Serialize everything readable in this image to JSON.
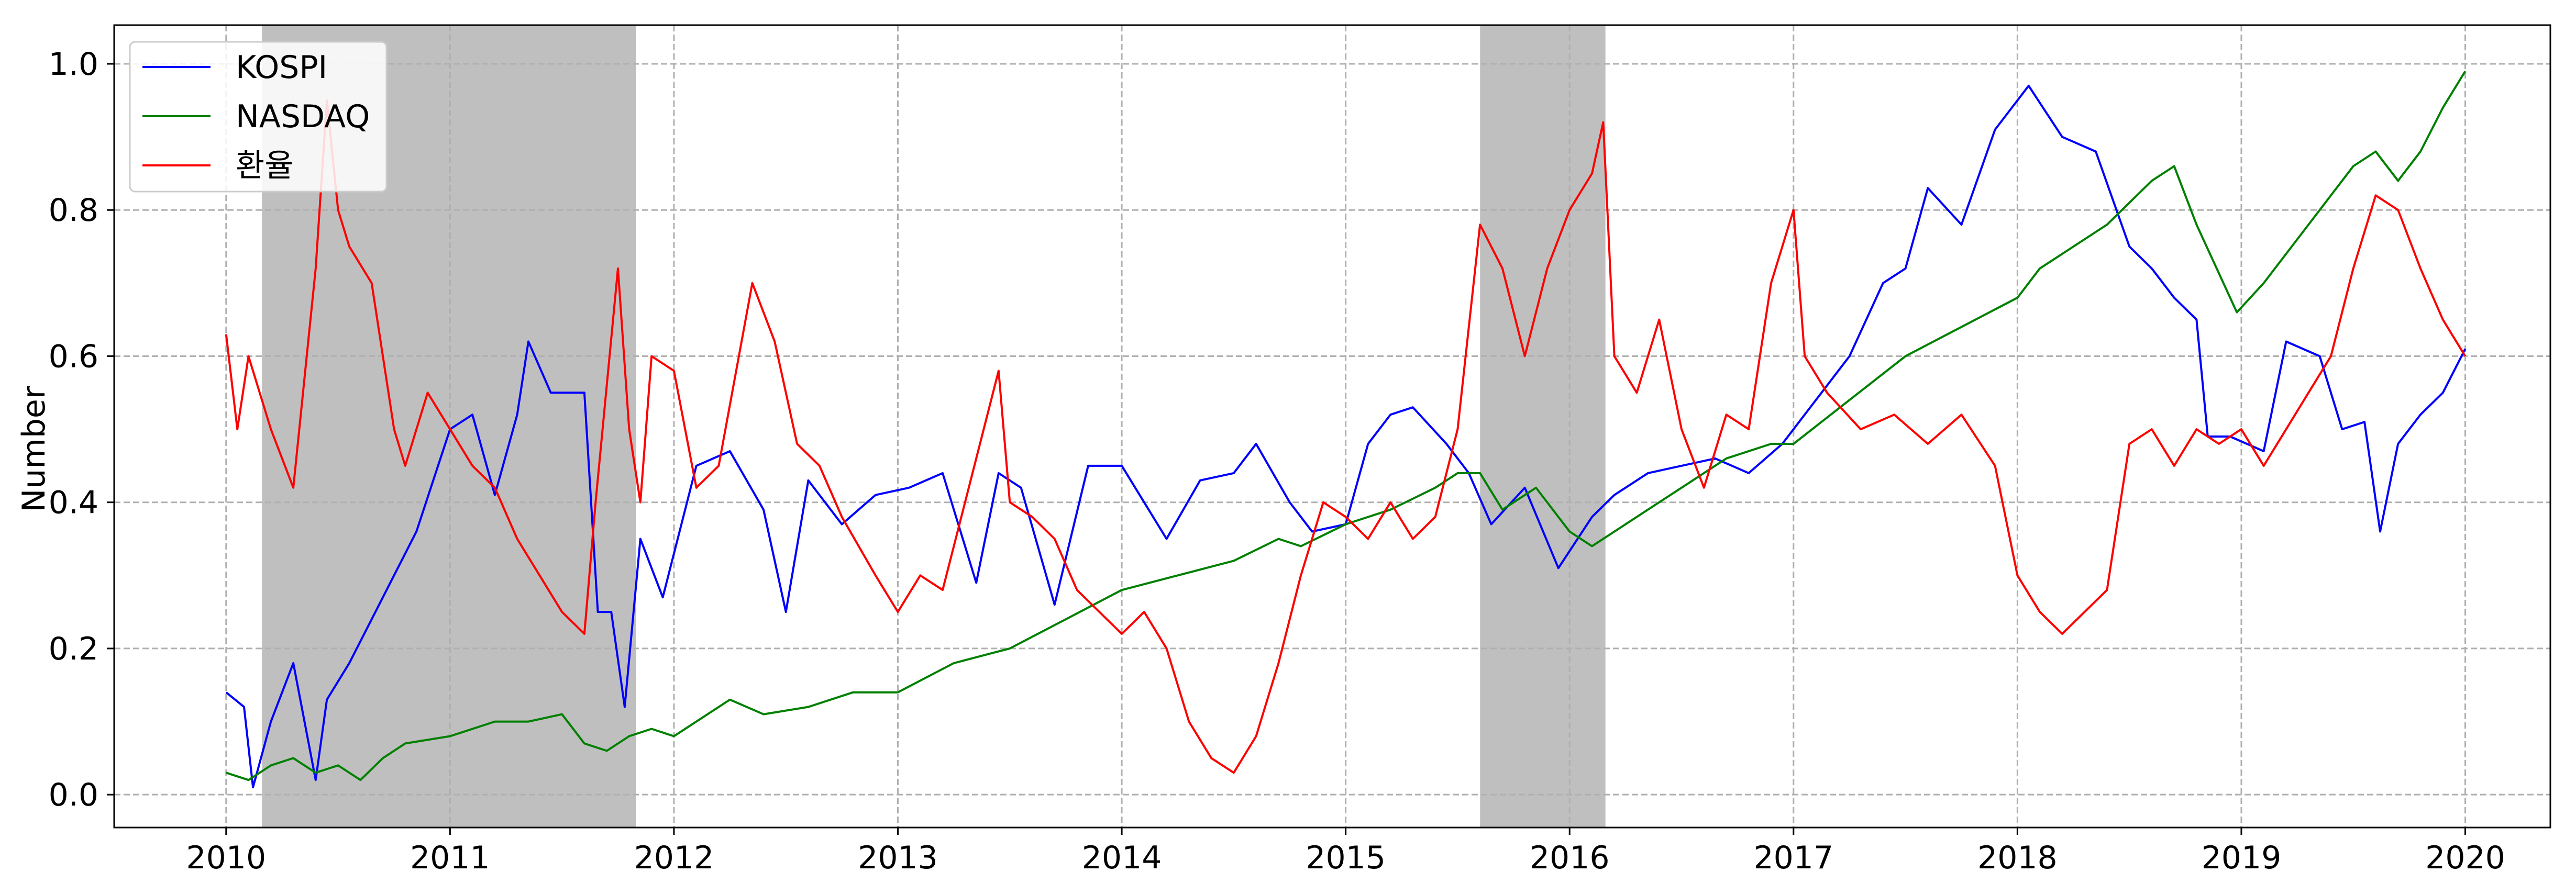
{
  "chart_data": {
    "type": "line",
    "title": "",
    "xlabel": "",
    "ylabel": "Number",
    "xlim": [
      2009.5,
      2020.38
    ],
    "ylim": [
      -0.045,
      1.053
    ],
    "x_ticks": [
      "2010",
      "2011",
      "2012",
      "2013",
      "2014",
      "2015",
      "2016",
      "2017",
      "2018",
      "2019",
      "2020"
    ],
    "y_ticks": [
      "0.0",
      "0.2",
      "0.4",
      "0.6",
      "0.8",
      "1.0"
    ],
    "grid": true,
    "legend_position": "top-left",
    "shaded_periods": [
      [
        2010.16,
        2011.83
      ],
      [
        2015.6,
        2016.16
      ]
    ],
    "series": [
      {
        "name": "KOSPI",
        "color": "#0000ff",
        "x": [
          2010.0,
          2010.08,
          2010.12,
          2010.2,
          2010.3,
          2010.4,
          2010.45,
          2010.55,
          2010.7,
          2010.85,
          2011.0,
          2011.1,
          2011.2,
          2011.3,
          2011.35,
          2011.45,
          2011.55,
          2011.6,
          2011.66,
          2011.72,
          2011.78,
          2011.85,
          2011.95,
          2012.1,
          2012.25,
          2012.4,
          2012.5,
          2012.6,
          2012.75,
          2012.9,
          2013.05,
          2013.2,
          2013.35,
          2013.45,
          2013.55,
          2013.7,
          2013.85,
          2014.0,
          2014.2,
          2014.35,
          2014.5,
          2014.6,
          2014.75,
          2014.85,
          2015.0,
          2015.1,
          2015.2,
          2015.3,
          2015.45,
          2015.55,
          2015.65,
          2015.8,
          2015.95,
          2016.1,
          2016.2,
          2016.35,
          2016.5,
          2016.65,
          2016.8,
          2016.95,
          2017.1,
          2017.25,
          2017.4,
          2017.5,
          2017.6,
          2017.75,
          2017.9,
          2018.0,
          2018.05,
          2018.2,
          2018.35,
          2018.5,
          2018.6,
          2018.7,
          2018.8,
          2018.85,
          2018.95,
          2019.1,
          2019.2,
          2019.35,
          2019.45,
          2019.55,
          2019.62,
          2019.7,
          2019.8,
          2019.9,
          2020.0
        ],
        "values": [
          0.14,
          0.12,
          0.01,
          0.1,
          0.18,
          0.02,
          0.13,
          0.18,
          0.27,
          0.36,
          0.5,
          0.52,
          0.41,
          0.52,
          0.62,
          0.55,
          0.55,
          0.55,
          0.25,
          0.25,
          0.12,
          0.35,
          0.27,
          0.45,
          0.47,
          0.39,
          0.25,
          0.43,
          0.37,
          0.41,
          0.42,
          0.44,
          0.29,
          0.44,
          0.42,
          0.26,
          0.45,
          0.45,
          0.35,
          0.43,
          0.44,
          0.48,
          0.4,
          0.36,
          0.37,
          0.48,
          0.52,
          0.53,
          0.48,
          0.44,
          0.37,
          0.42,
          0.31,
          0.38,
          0.41,
          0.44,
          0.45,
          0.46,
          0.44,
          0.48,
          0.54,
          0.6,
          0.7,
          0.72,
          0.83,
          0.78,
          0.91,
          0.95,
          0.97,
          0.9,
          0.88,
          0.75,
          0.72,
          0.68,
          0.65,
          0.49,
          0.49,
          0.47,
          0.62,
          0.6,
          0.5,
          0.51,
          0.36,
          0.48,
          0.52,
          0.55,
          0.61
        ]
      },
      {
        "name": "NASDAQ",
        "color": "#008000",
        "x": [
          2010.0,
          2010.1,
          2010.2,
          2010.3,
          2010.4,
          2010.5,
          2010.6,
          2010.7,
          2010.8,
          2011.0,
          2011.2,
          2011.35,
          2011.5,
          2011.6,
          2011.7,
          2011.8,
          2011.9,
          2012.0,
          2012.25,
          2012.4,
          2012.6,
          2012.8,
          2013.0,
          2013.25,
          2013.5,
          2013.75,
          2014.0,
          2014.25,
          2014.5,
          2014.7,
          2014.8,
          2015.0,
          2015.2,
          2015.4,
          2015.5,
          2015.6,
          2015.7,
          2015.85,
          2016.0,
          2016.1,
          2016.3,
          2016.5,
          2016.7,
          2016.9,
          2017.0,
          2017.25,
          2017.5,
          2017.75,
          2018.0,
          2018.1,
          2018.2,
          2018.4,
          2018.6,
          2018.7,
          2018.8,
          2018.98,
          2019.1,
          2019.3,
          2019.5,
          2019.6,
          2019.7,
          2019.8,
          2019.9,
          2020.0
        ],
        "values": [
          0.03,
          0.02,
          0.04,
          0.05,
          0.03,
          0.04,
          0.02,
          0.05,
          0.07,
          0.08,
          0.1,
          0.1,
          0.11,
          0.07,
          0.06,
          0.08,
          0.09,
          0.08,
          0.13,
          0.11,
          0.12,
          0.14,
          0.14,
          0.18,
          0.2,
          0.24,
          0.28,
          0.3,
          0.32,
          0.35,
          0.34,
          0.37,
          0.39,
          0.42,
          0.44,
          0.44,
          0.39,
          0.42,
          0.36,
          0.34,
          0.38,
          0.42,
          0.46,
          0.48,
          0.48,
          0.54,
          0.6,
          0.64,
          0.68,
          0.72,
          0.74,
          0.78,
          0.84,
          0.86,
          0.78,
          0.66,
          0.7,
          0.78,
          0.86,
          0.88,
          0.84,
          0.88,
          0.94,
          0.99
        ]
      },
      {
        "name": "환율",
        "color": "#ff0000",
        "x": [
          2010.0,
          2010.05,
          2010.1,
          2010.15,
          2010.2,
          2010.3,
          2010.4,
          2010.45,
          2010.5,
          2010.55,
          2010.65,
          2010.75,
          2010.8,
          2010.9,
          2011.0,
          2011.1,
          2011.2,
          2011.3,
          2011.4,
          2011.5,
          2011.6,
          2011.65,
          2011.75,
          2011.8,
          2011.85,
          2011.9,
          2012.0,
          2012.1,
          2012.2,
          2012.35,
          2012.45,
          2012.55,
          2012.65,
          2012.75,
          2012.9,
          2013.0,
          2013.1,
          2013.2,
          2013.3,
          2013.45,
          2013.5,
          2013.6,
          2013.7,
          2013.8,
          2014.0,
          2014.1,
          2014.2,
          2014.3,
          2014.4,
          2014.5,
          2014.6,
          2014.7,
          2014.8,
          2014.9,
          2015.0,
          2015.1,
          2015.2,
          2015.3,
          2015.4,
          2015.5,
          2015.6,
          2015.7,
          2015.8,
          2015.9,
          2016.0,
          2016.1,
          2016.15,
          2016.2,
          2016.3,
          2016.4,
          2016.5,
          2016.6,
          2016.7,
          2016.8,
          2016.9,
          2017.0,
          2017.05,
          2017.15,
          2017.3,
          2017.45,
          2017.6,
          2017.75,
          2017.9,
          2018.0,
          2018.1,
          2018.2,
          2018.3,
          2018.4,
          2018.5,
          2018.6,
          2018.7,
          2018.8,
          2018.9,
          2019.0,
          2019.1,
          2019.2,
          2019.3,
          2019.4,
          2019.5,
          2019.6,
          2019.7,
          2019.8,
          2019.9,
          2020.0
        ],
        "values": [
          0.63,
          0.5,
          0.6,
          0.55,
          0.5,
          0.42,
          0.72,
          0.95,
          0.8,
          0.75,
          0.7,
          0.5,
          0.45,
          0.55,
          0.5,
          0.45,
          0.42,
          0.35,
          0.3,
          0.25,
          0.22,
          0.4,
          0.72,
          0.5,
          0.4,
          0.6,
          0.58,
          0.42,
          0.45,
          0.7,
          0.62,
          0.48,
          0.45,
          0.38,
          0.3,
          0.25,
          0.3,
          0.28,
          0.4,
          0.58,
          0.4,
          0.38,
          0.35,
          0.28,
          0.22,
          0.25,
          0.2,
          0.1,
          0.05,
          0.03,
          0.08,
          0.18,
          0.3,
          0.4,
          0.38,
          0.35,
          0.4,
          0.35,
          0.38,
          0.5,
          0.78,
          0.72,
          0.6,
          0.72,
          0.8,
          0.85,
          0.92,
          0.6,
          0.55,
          0.65,
          0.5,
          0.42,
          0.52,
          0.5,
          0.7,
          0.8,
          0.6,
          0.55,
          0.5,
          0.52,
          0.48,
          0.52,
          0.45,
          0.3,
          0.25,
          0.22,
          0.25,
          0.28,
          0.48,
          0.5,
          0.45,
          0.5,
          0.48,
          0.5,
          0.45,
          0.5,
          0.55,
          0.6,
          0.72,
          0.82,
          0.8,
          0.72,
          0.65,
          0.6
        ]
      }
    ]
  }
}
